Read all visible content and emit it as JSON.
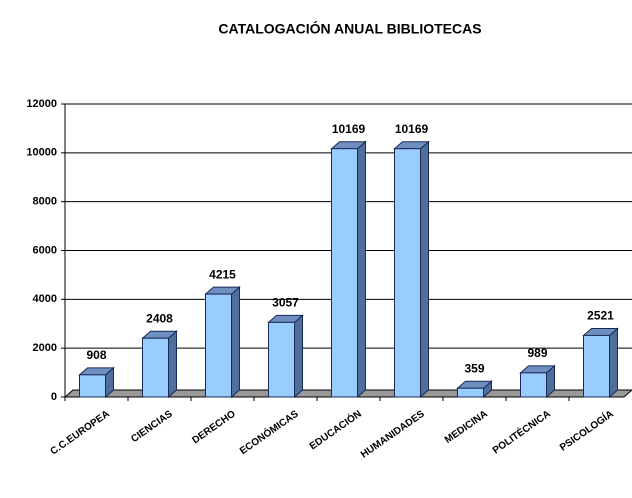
{
  "chart_data": {
    "type": "bar3d",
    "title": "CATALOGACIÓN ANUAL BIBLIOTECAS",
    "categories": [
      "C.C.EUROPEA",
      "CIENCIAS",
      "DERECHO",
      "ECONÓMICAS",
      "EDUCACIÓN",
      "HUMANIDADES",
      "MEDICINA",
      "POLITÉCNICA",
      "PSICOLOGÍA"
    ],
    "values": [
      908,
      2408,
      4215,
      3057,
      10169,
      10169,
      359,
      989,
      2521
    ],
    "color": "#99ccff",
    "ylim": [
      0,
      12000
    ],
    "yticks": [
      0,
      2000,
      4000,
      6000,
      8000,
      10000,
      12000
    ],
    "grid": true
  }
}
